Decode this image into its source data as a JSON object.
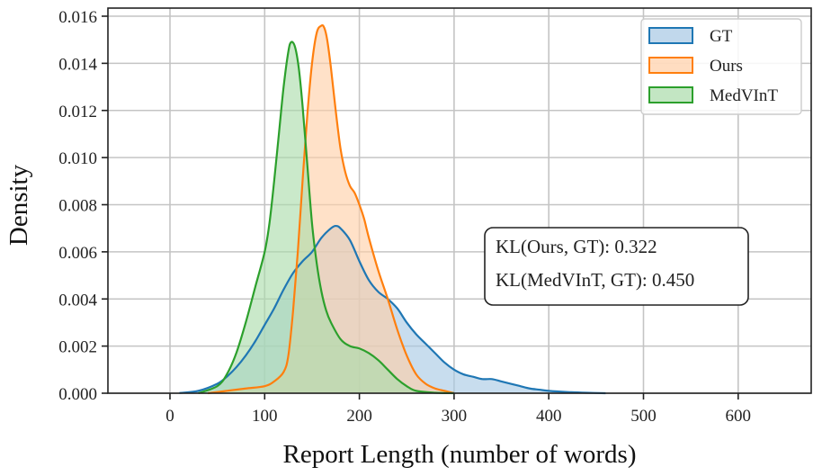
{
  "chart_data": {
    "type": "area",
    "title": "",
    "xlabel": "Report Length (number of words)",
    "ylabel": "Density",
    "xlim": [
      -65,
      677
    ],
    "ylim": [
      0,
      0.0163
    ],
    "xticks": [
      0,
      100,
      200,
      300,
      400,
      500,
      600
    ],
    "xtick_labels": [
      "0",
      "100",
      "200",
      "300",
      "400",
      "500",
      "600"
    ],
    "yticks": [
      0.0,
      0.002,
      0.004,
      0.006,
      0.008,
      0.01,
      0.012,
      0.014,
      0.016
    ],
    "ytick_labels": [
      "0.000",
      "0.002",
      "0.004",
      "0.006",
      "0.008",
      "0.010",
      "0.012",
      "0.014",
      "0.016"
    ],
    "grid": true,
    "legend_position": "upper right",
    "series": [
      {
        "name": "GT",
        "color": "#1f77b4",
        "fill": "#a6c8e4",
        "x": [
          10,
          30,
          50,
          60,
          70,
          80,
          90,
          100,
          110,
          120,
          130,
          140,
          150,
          160,
          170,
          175,
          180,
          190,
          200,
          210,
          220,
          230,
          240,
          250,
          260,
          270,
          280,
          290,
          300,
          310,
          320,
          330,
          340,
          350,
          360,
          370,
          380,
          390,
          400,
          420,
          440,
          460
        ],
        "y": [
          1e-05,
          0.0001,
          0.0004,
          0.0007,
          0.0011,
          0.0016,
          0.0022,
          0.0029,
          0.0036,
          0.0044,
          0.0051,
          0.0056,
          0.006,
          0.0066,
          0.007,
          0.0071,
          0.007,
          0.0065,
          0.0056,
          0.0048,
          0.0043,
          0.004,
          0.0036,
          0.003,
          0.0025,
          0.0021,
          0.0017,
          0.0013,
          0.001,
          0.0008,
          0.0007,
          0.0006,
          0.0006,
          0.0005,
          0.0004,
          0.0003,
          0.0002,
          0.00015,
          0.0001,
          5e-05,
          2e-05,
          0.0
        ]
      },
      {
        "name": "Ours",
        "color": "#ff7f0e",
        "fill": "#ffcfa6",
        "x": [
          40,
          60,
          80,
          100,
          110,
          120,
          125,
          130,
          135,
          140,
          145,
          150,
          155,
          160,
          163,
          166,
          170,
          175,
          180,
          185,
          190,
          195,
          200,
          205,
          210,
          220,
          230,
          240,
          250,
          260,
          270,
          280,
          290,
          300
        ],
        "y": [
          0.0,
          0.0001,
          0.0002,
          0.0003,
          0.0005,
          0.0009,
          0.0016,
          0.0035,
          0.006,
          0.009,
          0.0118,
          0.014,
          0.0153,
          0.0156,
          0.0155,
          0.015,
          0.0138,
          0.012,
          0.0104,
          0.0094,
          0.0088,
          0.0085,
          0.008,
          0.0074,
          0.0066,
          0.0052,
          0.004,
          0.0027,
          0.0016,
          0.0008,
          0.0004,
          0.0002,
          0.0001,
          0.0
        ]
      },
      {
        "name": "MedVInT",
        "color": "#2ca02c",
        "fill": "#a9dba9",
        "x": [
          30,
          50,
          60,
          70,
          80,
          90,
          100,
          105,
          110,
          115,
          120,
          125,
          128,
          132,
          136,
          140,
          145,
          150,
          155,
          160,
          165,
          170,
          180,
          190,
          200,
          210,
          220,
          230,
          240,
          250,
          260,
          280,
          300
        ],
        "y": [
          0.0,
          0.0003,
          0.0008,
          0.0017,
          0.003,
          0.0045,
          0.006,
          0.0072,
          0.009,
          0.011,
          0.013,
          0.0145,
          0.0149,
          0.0147,
          0.0138,
          0.0122,
          0.0097,
          0.0072,
          0.0055,
          0.0043,
          0.0035,
          0.003,
          0.0023,
          0.002,
          0.0019,
          0.0017,
          0.0014,
          0.001,
          0.0006,
          0.0003,
          0.0001,
          2e-05,
          0.0
        ]
      }
    ],
    "annotations": [
      "KL(Ours, GT): 0.322",
      "KL(MedVInT, GT): 0.450"
    ]
  },
  "legend": {
    "items": [
      {
        "label": "GT",
        "color": "#1f77b4",
        "fill": "#a6c8e4"
      },
      {
        "label": "Ours",
        "color": "#ff7f0e",
        "fill": "#ffcfa6"
      },
      {
        "label": "MedVInT",
        "color": "#2ca02c",
        "fill": "#a9dba9"
      }
    ]
  },
  "annotation_box": {
    "line1": "KL(Ours, GT): 0.322",
    "line2": "KL(MedVInT, GT): 0.450"
  },
  "axes": {
    "xlabel": "Report Length (number of words)",
    "ylabel": "Density"
  }
}
